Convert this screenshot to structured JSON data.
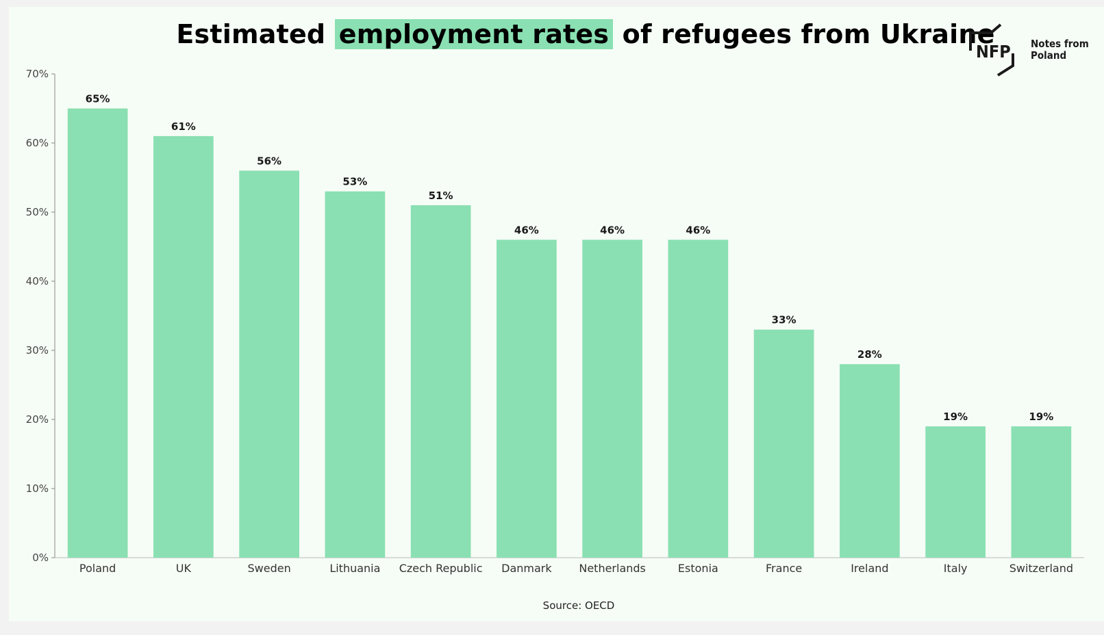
{
  "header": {
    "title_before": "Estimated",
    "title_highlight": "employment rates",
    "title_after": "of refugees from Ukraine"
  },
  "logo": {
    "mark": "NFP",
    "line1": "Notes from",
    "line2": "Poland"
  },
  "footer": {
    "source": "Source: OECD"
  },
  "colors": {
    "bar": "#8ae0b2",
    "highlight": "#8ae0b2",
    "background": "#f6fcf6"
  },
  "chart_data": {
    "type": "bar",
    "title": "Estimated employment rates of refugees from Ukraine",
    "xlabel": "",
    "ylabel": "",
    "categories": [
      "Poland",
      "UK",
      "Sweden",
      "Lithuania",
      "Czech Republic",
      "Danmark",
      "Netherlands",
      "Estonia",
      "France",
      "Ireland",
      "Italy",
      "Switzerland"
    ],
    "values": [
      65,
      61,
      56,
      53,
      51,
      46,
      46,
      46,
      33,
      28,
      19,
      19
    ],
    "value_labels": [
      "65%",
      "61%",
      "56%",
      "53%",
      "51%",
      "46%",
      "46%",
      "46%",
      "33%",
      "28%",
      "19%",
      "19%"
    ],
    "ylim": [
      0,
      70
    ],
    "yticks": [
      0,
      10,
      20,
      30,
      40,
      50,
      60,
      70
    ],
    "ytick_labels": [
      "0%",
      "10%",
      "20%",
      "30%",
      "40%",
      "50%",
      "60%",
      "70%"
    ],
    "grid": false,
    "source": "OECD"
  }
}
